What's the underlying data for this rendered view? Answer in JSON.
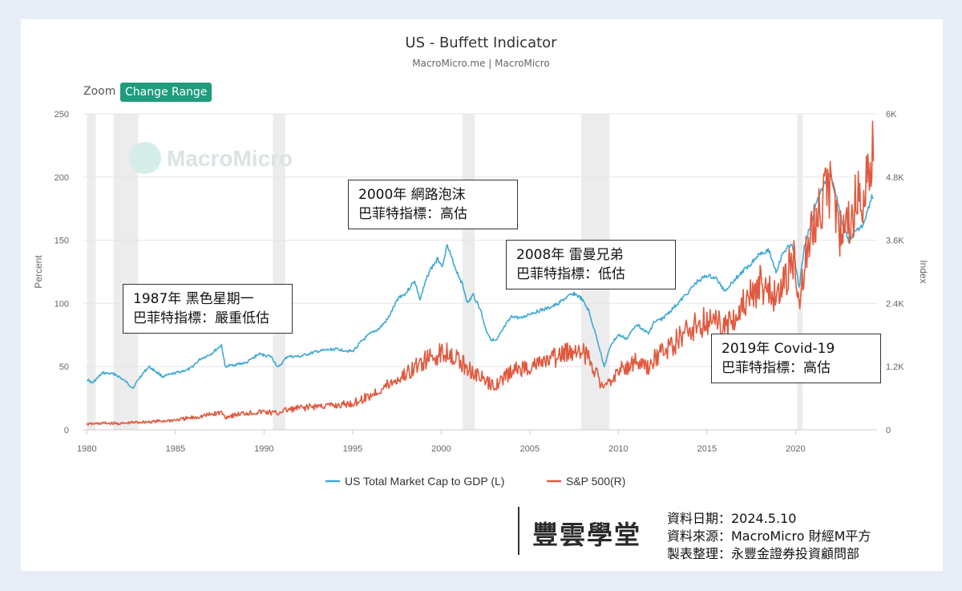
{
  "header": {
    "title": "US - Buffett Indicator",
    "subtitle": "MacroMicro.me | MacroMicro",
    "zoom_label": "Zoom",
    "change_range_label": "Change Range",
    "watermark": "MacroMicro"
  },
  "chart_data": {
    "type": "line",
    "title": "US - Buffett Indicator",
    "xlabel": "",
    "ylabel_left": "Percent",
    "ylabel_right": "Index",
    "x_range": [
      1979.8,
      2024.6
    ],
    "ylim_left": [
      0,
      250
    ],
    "ylim_right": [
      0,
      6000
    ],
    "x_ticks": [
      "1980",
      "1985",
      "1990",
      "1995",
      "2000",
      "2005",
      "2010",
      "2015",
      "2020"
    ],
    "x_tick_values": [
      1980,
      1985,
      1990,
      1995,
      2000,
      2005,
      2010,
      2015,
      2020
    ],
    "y_left_ticks": [
      "0",
      "50",
      "100",
      "150",
      "200",
      "250"
    ],
    "y_left_tick_values": [
      0,
      50,
      100,
      150,
      200,
      250
    ],
    "y_right_ticks": [
      "0",
      "1.2K",
      "2.4K",
      "3.6K",
      "4.8K",
      "6K"
    ],
    "y_right_tick_values": [
      0,
      1200,
      2400,
      3600,
      4800,
      6000
    ],
    "recessions": [
      [
        1980.0,
        1980.5
      ],
      [
        1981.5,
        1982.9
      ],
      [
        1990.5,
        1991.2
      ],
      [
        2001.2,
        2001.9
      ],
      [
        2007.9,
        2009.5
      ],
      [
        2020.1,
        2020.4
      ]
    ],
    "series": [
      {
        "name": "US Total Market Cap to GDP (L)",
        "axis": "left",
        "color": "#3fa9d3",
        "points": [
          [
            1980,
            40
          ],
          [
            1980.3,
            37
          ],
          [
            1980.9,
            45
          ],
          [
            1981.6,
            44
          ],
          [
            1982.2,
            38
          ],
          [
            1982.6,
            33
          ],
          [
            1983.0,
            42
          ],
          [
            1983.5,
            50
          ],
          [
            1984.3,
            42
          ],
          [
            1985,
            45
          ],
          [
            1985.8,
            48
          ],
          [
            1986.4,
            56
          ],
          [
            1987.0,
            60
          ],
          [
            1987.6,
            67
          ],
          [
            1987.8,
            50
          ],
          [
            1988.5,
            52
          ],
          [
            1989.0,
            53
          ],
          [
            1989.7,
            60
          ],
          [
            1990.4,
            58
          ],
          [
            1990.8,
            49
          ],
          [
            1991.3,
            58
          ],
          [
            1992,
            58
          ],
          [
            1993,
            62
          ],
          [
            1994,
            64
          ],
          [
            1994.5,
            63
          ],
          [
            1995,
            62
          ],
          [
            1995.5,
            70
          ],
          [
            1996,
            76
          ],
          [
            1996.5,
            80
          ],
          [
            1997,
            88
          ],
          [
            1997.6,
            105
          ],
          [
            1998,
            108
          ],
          [
            1998.5,
            118
          ],
          [
            1998.8,
            103
          ],
          [
            1999.3,
            125
          ],
          [
            1999.8,
            135
          ],
          [
            2000.1,
            130
          ],
          [
            2000.3,
            147
          ],
          [
            2000.8,
            128
          ],
          [
            2001.2,
            115
          ],
          [
            2001.5,
            100
          ],
          [
            2001.8,
            107
          ],
          [
            2002.2,
            96
          ],
          [
            2002.5,
            80
          ],
          [
            2002.8,
            72
          ],
          [
            2003.1,
            70
          ],
          [
            2003.6,
            82
          ],
          [
            2004,
            90
          ],
          [
            2004.5,
            88
          ],
          [
            2005,
            92
          ],
          [
            2005.5,
            94
          ],
          [
            2006,
            96
          ],
          [
            2006.5,
            99
          ],
          [
            2007,
            104
          ],
          [
            2007.5,
            108
          ],
          [
            2007.9,
            104
          ],
          [
            2008.3,
            95
          ],
          [
            2008.8,
            72
          ],
          [
            2009.2,
            50
          ],
          [
            2009.6,
            68
          ],
          [
            2010,
            75
          ],
          [
            2010.5,
            72
          ],
          [
            2011,
            84
          ],
          [
            2011.7,
            76
          ],
          [
            2012,
            85
          ],
          [
            2012.5,
            88
          ],
          [
            2013,
            95
          ],
          [
            2013.5,
            102
          ],
          [
            2014,
            110
          ],
          [
            2014.5,
            118
          ],
          [
            2015,
            122
          ],
          [
            2015.5,
            120
          ],
          [
            2016,
            110
          ],
          [
            2016.5,
            118
          ],
          [
            2017,
            125
          ],
          [
            2017.5,
            132
          ],
          [
            2018,
            140
          ],
          [
            2018.5,
            142
          ],
          [
            2018.9,
            125
          ],
          [
            2019.3,
            140
          ],
          [
            2019.8,
            148
          ],
          [
            2020.2,
            112
          ],
          [
            2020.5,
            145
          ],
          [
            2020.9,
            165
          ],
          [
            2021.3,
            185
          ],
          [
            2021.8,
            200
          ],
          [
            2022.0,
            202
          ],
          [
            2022.3,
            185
          ],
          [
            2022.7,
            160
          ],
          [
            2023.0,
            150
          ],
          [
            2023.3,
            155
          ],
          [
            2023.8,
            162
          ],
          [
            2024.1,
            175
          ],
          [
            2024.3,
            185
          ],
          [
            2024.4,
            183
          ]
        ]
      },
      {
        "name": "S&P 500(R)",
        "axis": "right",
        "color": "#e05a3f",
        "points": [
          [
            1980,
            107
          ],
          [
            1981,
            125
          ],
          [
            1982,
            118
          ],
          [
            1982.7,
            140
          ],
          [
            1983,
            145
          ],
          [
            1984,
            160
          ],
          [
            1985,
            185
          ],
          [
            1986,
            230
          ],
          [
            1987,
            290
          ],
          [
            1987.6,
            330
          ],
          [
            1987.8,
            240
          ],
          [
            1988,
            260
          ],
          [
            1989,
            320
          ],
          [
            1990,
            340
          ],
          [
            1990.8,
            310
          ],
          [
            1991,
            360
          ],
          [
            1992,
            410
          ],
          [
            1993,
            450
          ],
          [
            1994,
            460
          ],
          [
            1995,
            500
          ],
          [
            1996,
            650
          ],
          [
            1997,
            850
          ],
          [
            1998,
            1050
          ],
          [
            1999,
            1300
          ],
          [
            2000,
            1450
          ],
          [
            2000.5,
            1500
          ],
          [
            2001,
            1300
          ],
          [
            2001.8,
            1100
          ],
          [
            2002.8,
            850
          ],
          [
            2003.3,
            900
          ],
          [
            2004,
            1120
          ],
          [
            2005,
            1200
          ],
          [
            2006,
            1300
          ],
          [
            2007,
            1450
          ],
          [
            2007.8,
            1550
          ],
          [
            2008.5,
            1280
          ],
          [
            2009.2,
            750
          ],
          [
            2009.8,
            1050
          ],
          [
            2010,
            1120
          ],
          [
            2011,
            1300
          ],
          [
            2011.7,
            1150
          ],
          [
            2012,
            1350
          ],
          [
            2013,
            1600
          ],
          [
            2014,
            1900
          ],
          [
            2015,
            2080
          ],
          [
            2016,
            2000
          ],
          [
            2016.5,
            2150
          ],
          [
            2017,
            2350
          ],
          [
            2018,
            2750
          ],
          [
            2018.9,
            2500
          ],
          [
            2019.5,
            2950
          ],
          [
            2020.0,
            3300
          ],
          [
            2020.2,
            2300
          ],
          [
            2020.5,
            3150
          ],
          [
            2021,
            3800
          ],
          [
            2021.5,
            4300
          ],
          [
            2022.0,
            4700
          ],
          [
            2022.5,
            3800
          ],
          [
            2022.8,
            3600
          ],
          [
            2023,
            3900
          ],
          [
            2023.5,
            4450
          ],
          [
            2023.8,
            4200
          ],
          [
            2024,
            4800
          ],
          [
            2024.3,
            5250
          ],
          [
            2024.4,
            5100
          ]
        ]
      }
    ],
    "annotations": [
      {
        "line1": "1987年 黑色星期一",
        "line2": "巴菲特指標：嚴重低估"
      },
      {
        "line1": "2000年 網路泡沫",
        "line2": "巴菲特指標：高估"
      },
      {
        "line1": "2008年 雷曼兄弟",
        "line2": "巴菲特指標：低估"
      },
      {
        "line1": "2019年 Covid-19",
        "line2": "巴菲特指標：高估"
      }
    ]
  },
  "footer": {
    "brand": "豐雲學堂",
    "date_line": "資料日期：2024.5.10",
    "source_line": "資料來源：MacroMicro 財經M平方",
    "author_line": "製表整理：永豐金證券投資顧問部"
  },
  "colors": {
    "background": "#e8ecf7",
    "accent": "#1e9c7b",
    "series1": "#3fa9d3",
    "series2": "#e05a3f"
  }
}
